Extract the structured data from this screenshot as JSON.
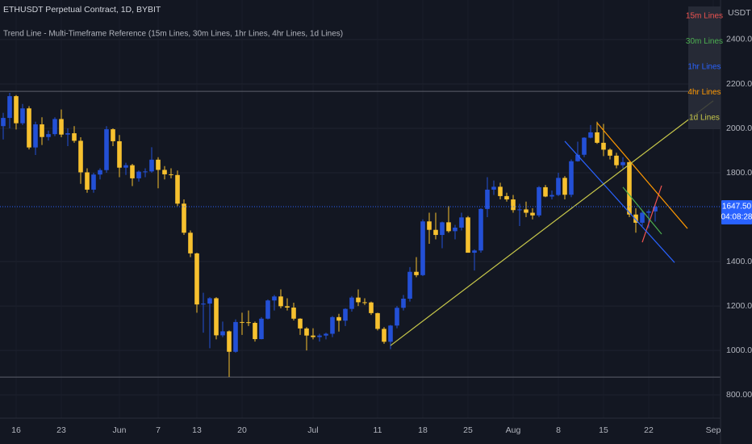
{
  "chart_data": {
    "type": "candlestick",
    "title": "ETHUSDT Perpetual Contract, 1D, BYBIT",
    "subtitle": "Trend Line - Multi-Timeframe Reference (15m Lines, 30m Lines, 1hr Lines, 4hr Lines, 1d Lines)",
    "y_label": "USDT",
    "up_color": "#2350d6",
    "down_color": "#f7c12f",
    "x": [
      "05-14",
      "05-15",
      "05-16",
      "05-17",
      "05-18",
      "05-19",
      "05-20",
      "05-21",
      "05-22",
      "05-23",
      "05-24",
      "05-25",
      "05-26",
      "05-27",
      "05-28",
      "05-29",
      "05-30",
      "05-31",
      "06-01",
      "06-02",
      "06-03",
      "06-04",
      "06-05",
      "06-06",
      "06-07",
      "06-08",
      "06-09",
      "06-10",
      "06-11",
      "06-12",
      "06-13",
      "06-14",
      "06-15",
      "06-16",
      "06-17",
      "06-18",
      "06-19",
      "06-20",
      "06-21",
      "06-22",
      "06-23",
      "06-24",
      "06-25",
      "06-26",
      "06-27",
      "06-28",
      "06-29",
      "06-30",
      "07-01",
      "07-02",
      "07-03",
      "07-04",
      "07-05",
      "07-06",
      "07-07",
      "07-08",
      "07-09",
      "07-10",
      "07-11",
      "07-12",
      "07-13",
      "07-14",
      "07-15",
      "07-16",
      "07-17",
      "07-18",
      "07-19",
      "07-20",
      "07-21",
      "07-22",
      "07-23",
      "07-24",
      "07-25",
      "07-26",
      "07-27",
      "07-28",
      "07-29",
      "07-30",
      "07-31",
      "08-01",
      "08-02",
      "08-03",
      "08-04",
      "08-05",
      "08-06",
      "08-07",
      "08-08",
      "08-09",
      "08-10",
      "08-11",
      "08-12",
      "08-13",
      "08-14",
      "08-15",
      "08-16",
      "08-17",
      "08-18",
      "08-19",
      "08-20",
      "08-21",
      "08-22",
      "08-23"
    ],
    "open": [
      2010,
      2047,
      2145,
      2023,
      2090,
      1914,
      2018,
      1961,
      1974,
      2042,
      1972,
      1978,
      1944,
      1802,
      1724,
      1792,
      1812,
      1996,
      1942,
      1823,
      1834,
      1775,
      1805,
      1806,
      1859,
      1813,
      1793,
      1790,
      1661,
      1530,
      1437,
      1207,
      1211,
      1235,
      1068,
      1086,
      994,
      1128,
      1127,
      1124,
      1051,
      1143,
      1225,
      1243,
      1199,
      1193,
      1143,
      1099,
      1067,
      1060,
      1067,
      1075,
      1150,
      1134,
      1187,
      1238,
      1217,
      1216,
      1168,
      1097,
      1039,
      1112,
      1192,
      1233,
      1354,
      1339,
      1581,
      1543,
      1520,
      1577,
      1537,
      1553,
      1599,
      1440,
      1450,
      1637,
      1724,
      1737,
      1695,
      1680,
      1632,
      1635,
      1620,
      1608,
      1735,
      1693,
      1700,
      1777,
      1701,
      1852,
      1881,
      1958,
      1982,
      1935,
      1904,
      1877,
      1834,
      1848,
      1612,
      1575,
      1620,
      1626
    ],
    "high": [
      2070,
      2160,
      2150,
      2110,
      2100,
      2030,
      2050,
      1990,
      2050,
      2085,
      2000,
      2010,
      1960,
      1820,
      1800,
      1820,
      2010,
      2000,
      1970,
      1845,
      1840,
      1810,
      1820,
      1915,
      1870,
      1830,
      1820,
      1810,
      1680,
      1540,
      1440,
      1260,
      1240,
      1240,
      1130,
      1090,
      1140,
      1170,
      1180,
      1130,
      1150,
      1230,
      1250,
      1275,
      1235,
      1215,
      1145,
      1105,
      1100,
      1075,
      1080,
      1155,
      1165,
      1190,
      1245,
      1275,
      1235,
      1220,
      1170,
      1105,
      1115,
      1200,
      1250,
      1375,
      1420,
      1590,
      1620,
      1620,
      1580,
      1650,
      1565,
      1620,
      1605,
      1455,
      1640,
      1780,
      1765,
      1755,
      1710,
      1700,
      1660,
      1670,
      1640,
      1740,
      1745,
      1720,
      1800,
      1785,
      1860,
      1940,
      1960,
      2015,
      2030,
      2020,
      1910,
      1890,
      1870,
      1850,
      1640,
      1630,
      1635,
      1660
    ],
    "low": [
      1950,
      2000,
      1995,
      2015,
      1905,
      1880,
      1925,
      1945,
      1965,
      1960,
      1920,
      1935,
      1750,
      1710,
      1710,
      1770,
      1800,
      1920,
      1780,
      1790,
      1740,
      1760,
      1780,
      1800,
      1730,
      1770,
      1775,
      1650,
      1520,
      1420,
      1170,
      1080,
      1010,
      1050,
      1060,
      881,
      990,
      1070,
      1110,
      1040,
      1050,
      1140,
      1180,
      1190,
      1180,
      1135,
      1070,
      1000,
      1050,
      1040,
      1050,
      1060,
      1085,
      1110,
      1175,
      1200,
      1205,
      1160,
      1090,
      1030,
      1006,
      1100,
      1180,
      1220,
      1330,
      1335,
      1480,
      1500,
      1460,
      1530,
      1500,
      1540,
      1440,
      1360,
      1440,
      1600,
      1700,
      1680,
      1670,
      1620,
      1560,
      1600,
      1590,
      1600,
      1690,
      1680,
      1695,
      1680,
      1690,
      1850,
      1870,
      1955,
      1930,
      1875,
      1860,
      1820,
      1820,
      1600,
      1530,
      1560,
      1550,
      1580
    ],
    "close": [
      2047,
      2145,
      2023,
      2090,
      1914,
      2018,
      1961,
      1974,
      2042,
      1972,
      1978,
      1944,
      1802,
      1724,
      1792,
      1812,
      1996,
      1942,
      1823,
      1834,
      1775,
      1805,
      1806,
      1859,
      1813,
      1793,
      1790,
      1661,
      1530,
      1437,
      1207,
      1211,
      1235,
      1068,
      1086,
      994,
      1128,
      1127,
      1124,
      1051,
      1143,
      1225,
      1243,
      1199,
      1193,
      1143,
      1099,
      1067,
      1060,
      1067,
      1075,
      1150,
      1134,
      1187,
      1238,
      1217,
      1216,
      1168,
      1097,
      1039,
      1112,
      1192,
      1233,
      1354,
      1339,
      1581,
      1543,
      1520,
      1577,
      1537,
      1553,
      1599,
      1440,
      1450,
      1637,
      1724,
      1737,
      1695,
      1680,
      1632,
      1635,
      1620,
      1608,
      1735,
      1693,
      1700,
      1777,
      1701,
      1852,
      1881,
      1958,
      1982,
      1935,
      1904,
      1877,
      1834,
      1848,
      1612,
      1575,
      1620,
      1626,
      1647.5
    ],
    "trend_lines": [
      {
        "name": "15m Lines",
        "color": "#ef5350",
        "x": [
          "08-21",
          "08-24"
        ],
        "values": [
          1487,
          1742
        ]
      },
      {
        "name": "30m Lines",
        "color": "#4caf50",
        "x": [
          "08-18",
          "08-24"
        ],
        "values": [
          1735,
          1524
        ]
      },
      {
        "name": "1hr Lines",
        "color": "#2962ff",
        "x": [
          "08-09",
          "08-26"
        ],
        "values": [
          1942,
          1396
        ]
      },
      {
        "name": "4hr Lines",
        "color": "#ff9800",
        "x": [
          "08-14",
          "08-28"
        ],
        "values": [
          2025,
          1549
        ]
      },
      {
        "name": "1d Lines",
        "color": "#c8c84a",
        "x": [
          "07-13",
          "09-01"
        ],
        "values": [
          1022,
          2124
        ]
      }
    ],
    "levels": [
      2167,
      880
    ],
    "last_price": {
      "value": 1647.5,
      "label": "1647.50"
    },
    "countdown": "04:08:28",
    "ylim": [
      695,
      2578
    ],
    "yticks": [
      {
        "value": 800,
        "label": "800.00"
      },
      {
        "value": 1000,
        "label": "1000.00"
      },
      {
        "value": 1200,
        "label": "1200.00"
      },
      {
        "value": 1400,
        "label": "1400.00"
      },
      {
        "value": 1800,
        "label": "1800.00"
      },
      {
        "value": 2000,
        "label": "2000.00"
      },
      {
        "value": 2200,
        "label": "2200.00"
      },
      {
        "value": 2400,
        "label": "2400.00"
      }
    ],
    "xticks": [
      {
        "value": "05-16",
        "label": "16"
      },
      {
        "value": "05-23",
        "label": "23"
      },
      {
        "value": "06-01",
        "label": "Jun"
      },
      {
        "value": "06-07",
        "label": "7"
      },
      {
        "value": "06-13",
        "label": "13"
      },
      {
        "value": "06-20",
        "label": "20"
      },
      {
        "value": "07-01",
        "label": "Jul"
      },
      {
        "value": "07-11",
        "label": "11"
      },
      {
        "value": "07-18",
        "label": "18"
      },
      {
        "value": "07-25",
        "label": "25"
      },
      {
        "value": "08-01",
        "label": "Aug"
      },
      {
        "value": "08-08",
        "label": "8"
      },
      {
        "value": "08-15",
        "label": "15"
      },
      {
        "value": "08-22",
        "label": "22"
      },
      {
        "value": "09-01",
        "label": "Sep"
      }
    ],
    "grid": true
  }
}
